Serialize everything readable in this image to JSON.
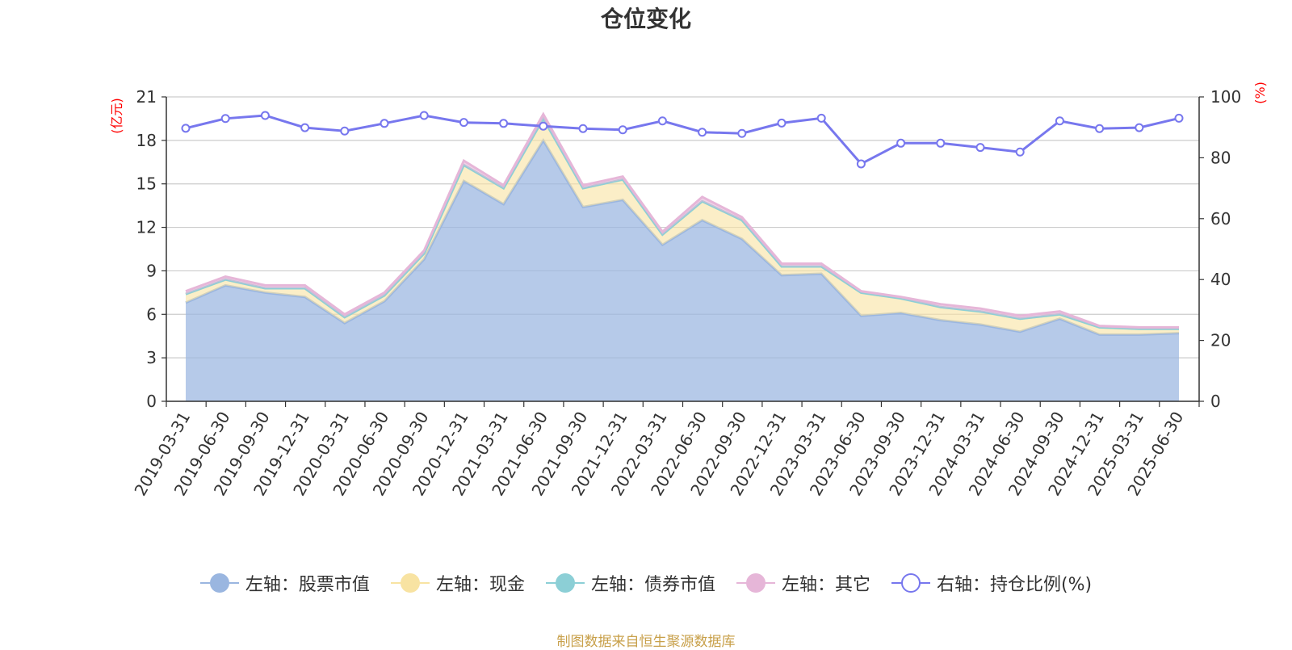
{
  "title": "仓位变化",
  "source": "制图数据来自恒生聚源数据库",
  "chart_data": {
    "type": "area",
    "title": "仓位变化",
    "left_axis": {
      "unit": "(亿元)",
      "ylim": [
        0,
        21
      ],
      "ticks": [
        0,
        3,
        6,
        9,
        12,
        15,
        18,
        21
      ]
    },
    "right_axis": {
      "unit": "(%)",
      "ylim": [
        0,
        100
      ],
      "ticks": [
        0,
        20,
        40,
        60,
        80,
        100
      ]
    },
    "grid": true,
    "legend_position": "bottom",
    "categories": [
      "2019-03-31",
      "2019-06-30",
      "2019-09-30",
      "2019-12-31",
      "2020-03-31",
      "2020-06-30",
      "2020-09-30",
      "2020-12-31",
      "2021-03-31",
      "2021-06-30",
      "2021-09-30",
      "2021-12-31",
      "2022-03-31",
      "2022-06-30",
      "2022-09-30",
      "2022-12-31",
      "2023-03-31",
      "2023-06-30",
      "2023-09-30",
      "2023-12-31",
      "2024-03-31",
      "2024-06-30",
      "2024-09-30",
      "2024-12-31",
      "2025-03-31",
      "2025-06-30"
    ],
    "series": [
      {
        "name": "左轴：股票市值",
        "axis": "left",
        "color": "#9ab6e0",
        "values": [
          6.8,
          8.0,
          7.5,
          7.2,
          5.4,
          6.9,
          9.8,
          15.2,
          13.6,
          18.0,
          13.4,
          13.9,
          10.8,
          12.5,
          11.2,
          8.7,
          8.8,
          5.9,
          6.1,
          5.6,
          5.3,
          4.8,
          5.7,
          4.6,
          4.6,
          4.7
        ]
      },
      {
        "name": "左轴：现金",
        "axis": "left",
        "color": "#f8e3a2",
        "values": [
          0.6,
          0.4,
          0.3,
          0.6,
          0.4,
          0.4,
          0.4,
          1.1,
          1.1,
          1.5,
          1.3,
          1.4,
          0.7,
          1.3,
          1.3,
          0.6,
          0.5,
          1.6,
          1.0,
          0.9,
          0.9,
          0.9,
          0.3,
          0.5,
          0.4,
          0.3
        ]
      },
      {
        "name": "左轴：债券市值",
        "axis": "left",
        "color": "#8ccfd6",
        "values": [
          0,
          0,
          0,
          0,
          0,
          0,
          0,
          0,
          0,
          0,
          0,
          0,
          0,
          0,
          0,
          0,
          0,
          0,
          0,
          0,
          0,
          0,
          0,
          0,
          0,
          0
        ]
      },
      {
        "name": "左轴：其它",
        "axis": "left",
        "color": "#e6b6d8",
        "values": [
          0.2,
          0.2,
          0.2,
          0.2,
          0.2,
          0.2,
          0.2,
          0.3,
          0.2,
          0.3,
          0.2,
          0.2,
          0.2,
          0.3,
          0.2,
          0.2,
          0.2,
          0.1,
          0.1,
          0.2,
          0.2,
          0.2,
          0.2,
          0.1,
          0.1,
          0.1
        ]
      },
      {
        "name": "右轴：持仓比例(%)",
        "axis": "right",
        "color": "#7777ee",
        "values": [
          89.7,
          92.9,
          93.9,
          89.9,
          88.8,
          91.3,
          93.9,
          91.6,
          91.3,
          90.4,
          89.6,
          89.2,
          92.1,
          88.4,
          88.0,
          91.4,
          93.0,
          78.0,
          84.8,
          84.8,
          83.4,
          81.9,
          92.1,
          89.6,
          89.9,
          93.0
        ]
      }
    ]
  }
}
